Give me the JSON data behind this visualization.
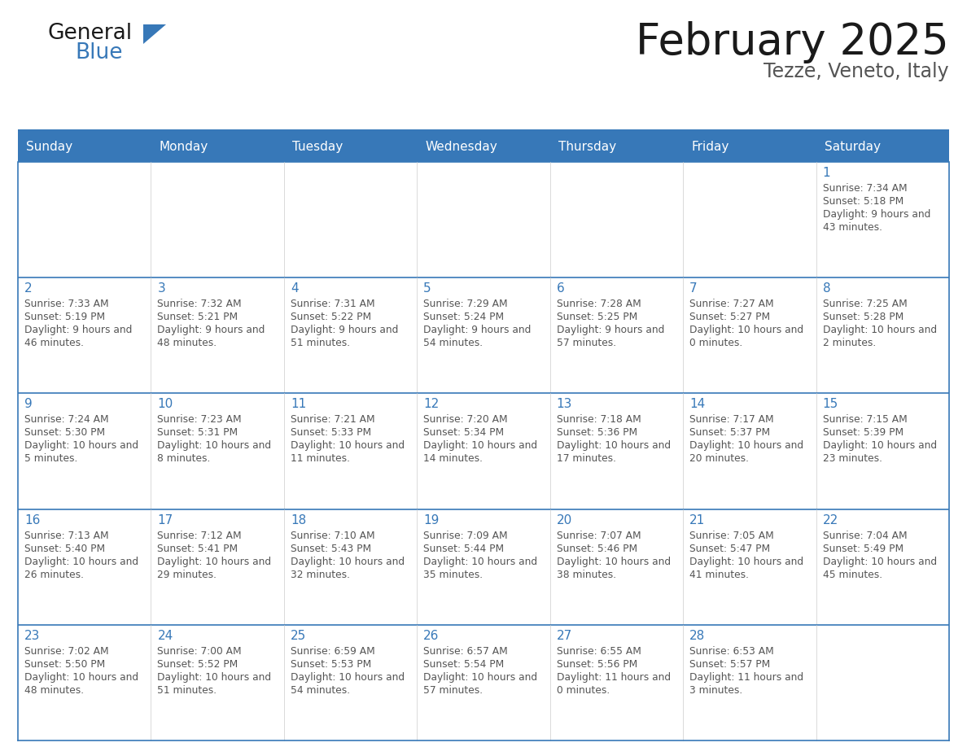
{
  "title": "February 2025",
  "subtitle": "Tezze, Veneto, Italy",
  "header_bg": "#3778b8",
  "header_text": "#ffffff",
  "border_color": "#3778b8",
  "day_names": [
    "Sunday",
    "Monday",
    "Tuesday",
    "Wednesday",
    "Thursday",
    "Friday",
    "Saturday"
  ],
  "title_color": "#1a1a1a",
  "subtitle_color": "#555555",
  "day_number_color": "#3778b8",
  "cell_text_color": "#555555",
  "cell_bg": "#ffffff",
  "calendar": [
    [
      null,
      null,
      null,
      null,
      null,
      null,
      {
        "day": 1,
        "sunrise": "7:34 AM",
        "sunset": "5:18 PM",
        "daylight": "9 hours and 43 minutes."
      }
    ],
    [
      {
        "day": 2,
        "sunrise": "7:33 AM",
        "sunset": "5:19 PM",
        "daylight": "9 hours and 46 minutes."
      },
      {
        "day": 3,
        "sunrise": "7:32 AM",
        "sunset": "5:21 PM",
        "daylight": "9 hours and 48 minutes."
      },
      {
        "day": 4,
        "sunrise": "7:31 AM",
        "sunset": "5:22 PM",
        "daylight": "9 hours and 51 minutes."
      },
      {
        "day": 5,
        "sunrise": "7:29 AM",
        "sunset": "5:24 PM",
        "daylight": "9 hours and 54 minutes."
      },
      {
        "day": 6,
        "sunrise": "7:28 AM",
        "sunset": "5:25 PM",
        "daylight": "9 hours and 57 minutes."
      },
      {
        "day": 7,
        "sunrise": "7:27 AM",
        "sunset": "5:27 PM",
        "daylight": "10 hours and 0 minutes."
      },
      {
        "day": 8,
        "sunrise": "7:25 AM",
        "sunset": "5:28 PM",
        "daylight": "10 hours and 2 minutes."
      }
    ],
    [
      {
        "day": 9,
        "sunrise": "7:24 AM",
        "sunset": "5:30 PM",
        "daylight": "10 hours and 5 minutes."
      },
      {
        "day": 10,
        "sunrise": "7:23 AM",
        "sunset": "5:31 PM",
        "daylight": "10 hours and 8 minutes."
      },
      {
        "day": 11,
        "sunrise": "7:21 AM",
        "sunset": "5:33 PM",
        "daylight": "10 hours and 11 minutes."
      },
      {
        "day": 12,
        "sunrise": "7:20 AM",
        "sunset": "5:34 PM",
        "daylight": "10 hours and 14 minutes."
      },
      {
        "day": 13,
        "sunrise": "7:18 AM",
        "sunset": "5:36 PM",
        "daylight": "10 hours and 17 minutes."
      },
      {
        "day": 14,
        "sunrise": "7:17 AM",
        "sunset": "5:37 PM",
        "daylight": "10 hours and 20 minutes."
      },
      {
        "day": 15,
        "sunrise": "7:15 AM",
        "sunset": "5:39 PM",
        "daylight": "10 hours and 23 minutes."
      }
    ],
    [
      {
        "day": 16,
        "sunrise": "7:13 AM",
        "sunset": "5:40 PM",
        "daylight": "10 hours and 26 minutes."
      },
      {
        "day": 17,
        "sunrise": "7:12 AM",
        "sunset": "5:41 PM",
        "daylight": "10 hours and 29 minutes."
      },
      {
        "day": 18,
        "sunrise": "7:10 AM",
        "sunset": "5:43 PM",
        "daylight": "10 hours and 32 minutes."
      },
      {
        "day": 19,
        "sunrise": "7:09 AM",
        "sunset": "5:44 PM",
        "daylight": "10 hours and 35 minutes."
      },
      {
        "day": 20,
        "sunrise": "7:07 AM",
        "sunset": "5:46 PM",
        "daylight": "10 hours and 38 minutes."
      },
      {
        "day": 21,
        "sunrise": "7:05 AM",
        "sunset": "5:47 PM",
        "daylight": "10 hours and 41 minutes."
      },
      {
        "day": 22,
        "sunrise": "7:04 AM",
        "sunset": "5:49 PM",
        "daylight": "10 hours and 45 minutes."
      }
    ],
    [
      {
        "day": 23,
        "sunrise": "7:02 AM",
        "sunset": "5:50 PM",
        "daylight": "10 hours and 48 minutes."
      },
      {
        "day": 24,
        "sunrise": "7:00 AM",
        "sunset": "5:52 PM",
        "daylight": "10 hours and 51 minutes."
      },
      {
        "day": 25,
        "sunrise": "6:59 AM",
        "sunset": "5:53 PM",
        "daylight": "10 hours and 54 minutes."
      },
      {
        "day": 26,
        "sunrise": "6:57 AM",
        "sunset": "5:54 PM",
        "daylight": "10 hours and 57 minutes."
      },
      {
        "day": 27,
        "sunrise": "6:55 AM",
        "sunset": "5:56 PM",
        "daylight": "11 hours and 0 minutes."
      },
      {
        "day": 28,
        "sunrise": "6:53 AM",
        "sunset": "5:57 PM",
        "daylight": "11 hours and 3 minutes."
      },
      null
    ]
  ],
  "logo_text1": "General",
  "logo_text2": "Blue",
  "logo_color1": "#1a1a1a",
  "logo_color2": "#3778b8",
  "logo_triangle_color": "#3778b8",
  "figsize": [
    11.88,
    9.18
  ],
  "dpi": 100
}
